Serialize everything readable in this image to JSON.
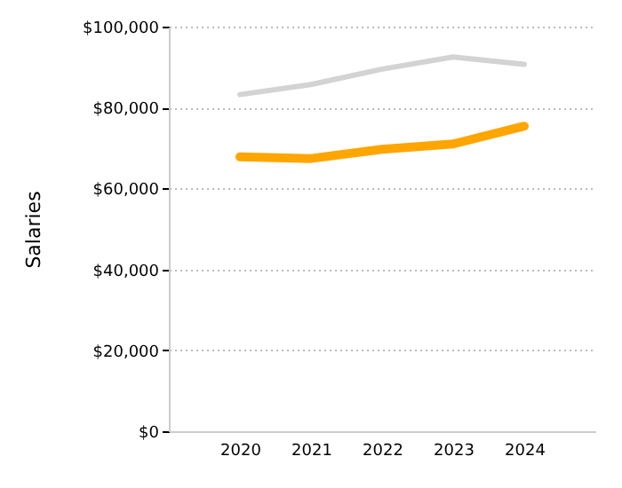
{
  "chart_data": {
    "type": "line",
    "ylabel": "Salaries",
    "x": [
      2020,
      2021,
      2022,
      2023,
      2024
    ],
    "series": [
      {
        "color": "#d3d3d3",
        "values": [
          83200,
          85700,
          89500,
          92500,
          90700
        ]
      },
      {
        "color": "#ffa500",
        "values": [
          67800,
          67400,
          69700,
          71000,
          75400
        ]
      }
    ],
    "xlim": [
      2019,
      2025
    ],
    "xticks": [
      2020,
      2021,
      2022,
      2023,
      2024
    ],
    "ylim": [
      0,
      100000
    ],
    "yticks": [
      {
        "value": 0,
        "label": "$0"
      },
      {
        "value": 20000,
        "label": "$20,000"
      },
      {
        "value": 40000,
        "label": "$40,000"
      },
      {
        "value": 60000,
        "label": "$60,000"
      },
      {
        "value": 80000,
        "label": "$80,000"
      },
      {
        "value": 100000,
        "label": "$100,000"
      }
    ],
    "grid": "y",
    "marker": "none",
    "line_style": "solid"
  }
}
